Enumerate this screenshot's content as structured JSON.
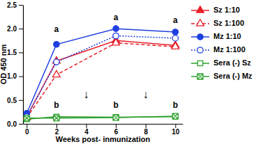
{
  "chart_data": {
    "type": "line",
    "x_label": "Weeks post- inmunization",
    "y_label": "OD 450 nm",
    "x": [
      0,
      2,
      6,
      10
    ],
    "xlim": [
      -0.25,
      10.5
    ],
    "xticks": [
      0,
      2,
      4,
      6,
      8,
      10
    ],
    "ylim": [
      0,
      2.5
    ],
    "yticks": [
      {
        "value": 0,
        "label": "0.0"
      },
      0.5,
      {
        "value": 1,
        "label": "1.0"
      },
      1.5,
      {
        "value": 2,
        "label": "2.0"
      },
      2.5
    ],
    "grid": false,
    "legend": "right",
    "series": [
      {
        "name": "Sz 1:10",
        "color": "#e8202a",
        "marker": "triangle",
        "line_style": "solid",
        "values": [
          0.15,
          1.32,
          1.75,
          1.65
        ]
      },
      {
        "name": "Sz 1:100",
        "color": "#e8202a",
        "marker": "triangle-open",
        "line_style": "dashed",
        "values": [
          0.13,
          1.03,
          1.7,
          1.62
        ]
      },
      {
        "name": "Mz 1:10",
        "color": "#1f3fe0",
        "marker": "circle",
        "line_style": "solid",
        "values": [
          0.22,
          1.67,
          2.0,
          1.93
        ]
      },
      {
        "name": "Mz 1:100",
        "color": "#1f3fe0",
        "marker": "circle-open",
        "line_style": "dotted",
        "values": [
          0.15,
          1.3,
          1.85,
          1.8
        ]
      },
      {
        "name": "Sera (-) Sz",
        "color": "#2ca02c",
        "marker": "square-open",
        "line_style": "solid",
        "values": [
          0.1,
          0.15,
          0.14,
          0.15
        ]
      },
      {
        "name": "Sera (-) Mz",
        "color": "#2ca02c",
        "marker": "square-x",
        "line_style": "solid",
        "values": [
          0.12,
          0.12,
          0.13,
          0.16
        ]
      }
    ],
    "annotations": [
      {
        "text": "a",
        "x": 2,
        "y": 1.98
      },
      {
        "text": "a",
        "x": 6,
        "y": 2.22
      },
      {
        "text": "a",
        "x": 10,
        "y": 2.17
      },
      {
        "text": "b",
        "x": 2,
        "y": 0.38
      },
      {
        "text": "b",
        "x": 6,
        "y": 0.38
      },
      {
        "text": "b",
        "x": 10,
        "y": 0.38
      },
      {
        "text": "↓",
        "x": 4,
        "y": 0.6
      },
      {
        "text": "↓",
        "x": 8,
        "y": 0.6
      }
    ]
  }
}
